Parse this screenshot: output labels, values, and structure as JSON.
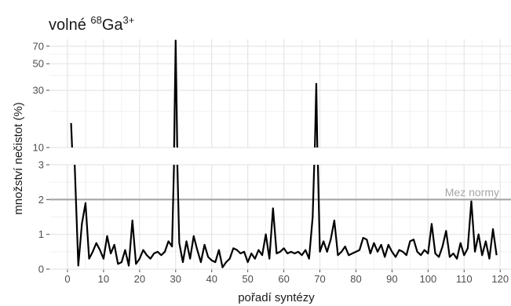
{
  "chart_data": {
    "type": "line",
    "title": "volné ",
    "title_sup1": "68",
    "title_mid": "Ga",
    "title_sup2": "3+",
    "xlabel": "pořadí syntézy",
    "ylabel": "množství nečistot (%)",
    "xlim": [
      -5,
      123
    ],
    "xticks": [
      0,
      10,
      20,
      30,
      40,
      50,
      60,
      70,
      80,
      90,
      100,
      110,
      120
    ],
    "upper_panel": {
      "ylim": [
        10,
        80
      ],
      "scale": "log",
      "yticks": [
        10,
        30,
        50,
        70
      ]
    },
    "lower_panel": {
      "ylim": [
        0,
        3
      ],
      "yticks": [
        0,
        1,
        2,
        3
      ]
    },
    "reference_line": {
      "y": 2,
      "label": "Mez normy",
      "color": "#a6a6a6"
    },
    "line_color": "#000000",
    "grid": true,
    "x": [
      1,
      2,
      3,
      4,
      5,
      6,
      7,
      8,
      9,
      10,
      11,
      12,
      13,
      14,
      15,
      16,
      17,
      18,
      19,
      20,
      21,
      22,
      23,
      24,
      25,
      26,
      27,
      28,
      29,
      30,
      31,
      32,
      33,
      34,
      35,
      36,
      37,
      38,
      39,
      40,
      41,
      42,
      43,
      44,
      45,
      46,
      47,
      48,
      49,
      50,
      51,
      52,
      53,
      54,
      55,
      56,
      57,
      58,
      59,
      60,
      61,
      62,
      63,
      64,
      65,
      66,
      67,
      68,
      69,
      70,
      71,
      72,
      73,
      74,
      75,
      76,
      77,
      78,
      79,
      80,
      81,
      82,
      83,
      84,
      85,
      86,
      87,
      88,
      89,
      90,
      91,
      92,
      93,
      94,
      95,
      96,
      97,
      98,
      99,
      100,
      101,
      102,
      103,
      104,
      105,
      106,
      107,
      108,
      109,
      110,
      111,
      112,
      113,
      114,
      115,
      116,
      117,
      118,
      119
    ],
    "values": [
      16,
      3,
      0.1,
      1.3,
      1.9,
      0.3,
      0.5,
      0.75,
      0.55,
      0.3,
      0.95,
      0.45,
      0.7,
      0.15,
      0.2,
      0.55,
      0.1,
      1.4,
      0.15,
      0.3,
      0.55,
      0.4,
      0.3,
      0.45,
      0.5,
      0.4,
      0.5,
      0.8,
      0.65,
      78,
      0.75,
      0.2,
      0.8,
      0.3,
      0.95,
      0.55,
      0.2,
      0.7,
      0.35,
      0.25,
      0.2,
      0.55,
      0.05,
      0.2,
      0.3,
      0.6,
      0.55,
      0.45,
      0.5,
      0.2,
      0.45,
      0.3,
      0.55,
      0.4,
      1,
      0.3,
      1.75,
      0.45,
      0.5,
      0.6,
      0.45,
      0.5,
      0.45,
      0.5,
      0.4,
      0.55,
      0.3,
      1.5,
      34,
      0.5,
      0.8,
      0.5,
      0.85,
      1.4,
      0.4,
      0.5,
      0.65,
      0.4,
      0.45,
      0.5,
      0.55,
      0.9,
      0.85,
      0.45,
      0.75,
      0.5,
      0.7,
      0.35,
      0.7,
      0.5,
      0.35,
      0.55,
      0.5,
      0.4,
      0.8,
      0.85,
      0.5,
      0.4,
      0.55,
      0.45,
      1.3,
      0.45,
      0.35,
      0.65,
      1.1,
      0.35,
      0.45,
      0.3,
      0.75,
      0.4,
      0.6,
      1.95,
      0.5,
      1,
      0.4,
      0.8,
      0.3,
      1.15,
      0.4
    ]
  }
}
